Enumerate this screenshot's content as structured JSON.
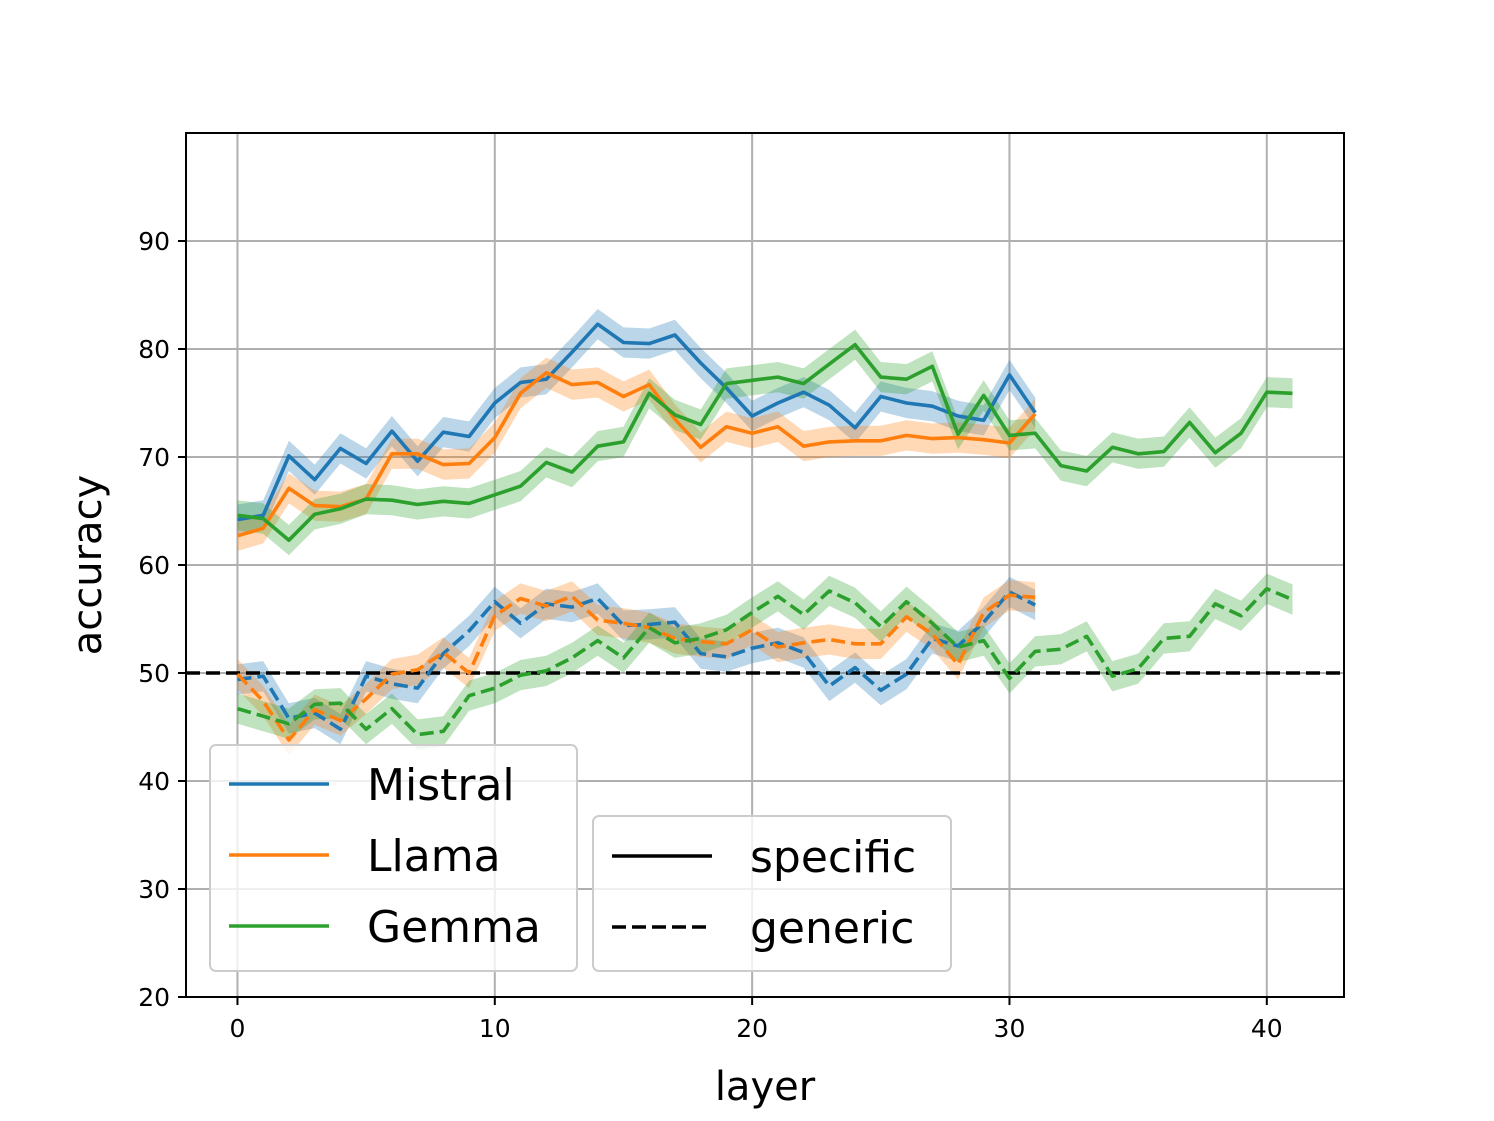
{
  "chart_data": {
    "type": "line",
    "title": "",
    "xlabel": "layer",
    "ylabel": "accuracy",
    "xlim": [
      -2,
      43
    ],
    "ylim": [
      20,
      100
    ],
    "xticks": [
      0,
      10,
      20,
      30,
      40
    ],
    "yticks": [
      20,
      30,
      40,
      50,
      60,
      70,
      80,
      90
    ],
    "grid": true,
    "reference_line": {
      "y": 50,
      "style": "dashed",
      "color": "#000000"
    },
    "colors": {
      "Mistral": "#1f77b4",
      "Llama": "#ff7f0e",
      "Gemma": "#2ca02c"
    },
    "series": [
      {
        "name": "Mistral",
        "style": "specific",
        "x": [
          0,
          1,
          2,
          3,
          4,
          5,
          6,
          7,
          8,
          9,
          10,
          11,
          12,
          13,
          14,
          15,
          16,
          17,
          18,
          19,
          20,
          21,
          22,
          23,
          24,
          25,
          26,
          27,
          28,
          29,
          30,
          31
        ],
        "y": [
          64.2,
          64.6,
          70.1,
          67.9,
          70.8,
          69.4,
          72.4,
          69.6,
          72.3,
          71.9,
          75.0,
          76.9,
          77.2,
          79.7,
          82.3,
          80.6,
          80.5,
          81.3,
          78.7,
          76.4,
          73.8,
          75.0,
          76.0,
          74.8,
          72.7,
          75.6,
          75.0,
          74.7,
          73.8,
          73.4,
          77.6,
          74.1
        ],
        "band": 1.4
      },
      {
        "name": "Llama",
        "style": "specific",
        "x": [
          0,
          1,
          2,
          3,
          4,
          5,
          6,
          7,
          8,
          9,
          10,
          11,
          12,
          13,
          14,
          15,
          16,
          17,
          18,
          19,
          20,
          21,
          22,
          23,
          24,
          25,
          26,
          27,
          28,
          29,
          30,
          31
        ],
        "y": [
          62.7,
          63.4,
          67.1,
          65.5,
          65.4,
          66.1,
          70.3,
          70.3,
          69.3,
          69.4,
          71.8,
          75.9,
          77.8,
          76.7,
          76.9,
          75.6,
          76.7,
          73.5,
          70.9,
          72.8,
          72.2,
          72.8,
          71.0,
          71.4,
          71.5,
          71.5,
          72.0,
          71.7,
          71.8,
          71.6,
          71.3,
          74.0
        ],
        "band": 1.4
      },
      {
        "name": "Gemma",
        "style": "specific",
        "x": [
          0,
          1,
          2,
          3,
          4,
          5,
          6,
          7,
          8,
          9,
          10,
          11,
          12,
          13,
          14,
          15,
          16,
          17,
          18,
          19,
          20,
          21,
          22,
          23,
          24,
          25,
          26,
          27,
          28,
          29,
          30,
          31,
          32,
          33,
          34,
          35,
          36,
          37,
          38,
          39,
          40,
          41
        ],
        "y": [
          64.6,
          64.3,
          62.3,
          64.7,
          65.2,
          66.1,
          66.0,
          65.6,
          65.9,
          65.7,
          66.5,
          67.3,
          69.5,
          68.6,
          71.0,
          71.4,
          75.9,
          73.9,
          73.0,
          76.8,
          77.1,
          77.4,
          76.8,
          78.6,
          80.4,
          77.4,
          77.2,
          78.4,
          72.1,
          75.7,
          72.0,
          72.2,
          69.2,
          68.7,
          70.9,
          70.3,
          70.5,
          73.2,
          70.4,
          72.2,
          76.0,
          75.9
        ],
        "band": 1.4
      },
      {
        "name": "Mistral",
        "style": "generic",
        "x": [
          0,
          1,
          2,
          3,
          4,
          5,
          6,
          7,
          8,
          9,
          10,
          11,
          12,
          13,
          14,
          15,
          16,
          17,
          18,
          19,
          20,
          21,
          22,
          23,
          24,
          25,
          26,
          27,
          28,
          29,
          30,
          31
        ],
        "y": [
          49.4,
          49.7,
          45.8,
          46.3,
          44.8,
          49.7,
          49.0,
          48.6,
          51.8,
          53.9,
          56.6,
          54.6,
          56.4,
          56.1,
          56.9,
          54.4,
          54.5,
          54.7,
          51.8,
          51.5,
          52.3,
          52.8,
          51.9,
          48.8,
          50.5,
          48.4,
          49.9,
          53.2,
          52.5,
          54.7,
          57.5,
          56.3
        ],
        "band": 1.4
      },
      {
        "name": "Llama",
        "style": "generic",
        "x": [
          0,
          1,
          2,
          3,
          4,
          5,
          6,
          7,
          8,
          9,
          10,
          11,
          12,
          13,
          14,
          15,
          16,
          17,
          18,
          19,
          20,
          21,
          22,
          23,
          24,
          25,
          26,
          27,
          28,
          29,
          30,
          31
        ],
        "y": [
          49.9,
          47.4,
          43.8,
          46.6,
          45.6,
          47.6,
          49.9,
          50.3,
          51.9,
          50.0,
          55.3,
          56.9,
          56.2,
          57.1,
          54.9,
          54.6,
          54.2,
          53.2,
          52.9,
          52.7,
          54.0,
          52.4,
          52.8,
          53.1,
          52.7,
          52.7,
          55.2,
          53.6,
          50.8,
          55.6,
          57.2,
          57.0
        ],
        "band": 1.4
      },
      {
        "name": "Gemma",
        "style": "generic",
        "x": [
          0,
          1,
          2,
          3,
          4,
          5,
          6,
          7,
          8,
          9,
          10,
          11,
          12,
          13,
          14,
          15,
          16,
          17,
          18,
          19,
          20,
          21,
          22,
          23,
          24,
          25,
          26,
          27,
          28,
          29,
          30,
          31,
          32,
          33,
          34,
          35,
          36,
          37,
          38,
          39,
          40,
          41
        ],
        "y": [
          46.7,
          46.0,
          45.3,
          47.1,
          47.2,
          44.8,
          46.7,
          44.3,
          44.6,
          47.9,
          48.6,
          49.8,
          50.2,
          51.4,
          53.0,
          51.4,
          54.2,
          52.8,
          53.2,
          54.0,
          55.6,
          57.1,
          55.4,
          57.6,
          56.5,
          54.3,
          56.6,
          54.6,
          52.4,
          53.0,
          49.5,
          52.0,
          52.2,
          53.4,
          49.7,
          50.4,
          53.2,
          53.4,
          56.4,
          55.3,
          57.8,
          56.8
        ],
        "band": 1.4
      }
    ],
    "legend_models": {
      "placement": "lower-left",
      "entries": [
        {
          "label": "Mistral",
          "color": "#1f77b4"
        },
        {
          "label": "Llama",
          "color": "#ff7f0e"
        },
        {
          "label": "Gemma",
          "color": "#2ca02c"
        }
      ]
    },
    "legend_styles": {
      "placement": "lower-center",
      "entries": [
        {
          "label": "specific",
          "style": "solid"
        },
        {
          "label": "generic",
          "style": "dashed"
        }
      ]
    }
  }
}
